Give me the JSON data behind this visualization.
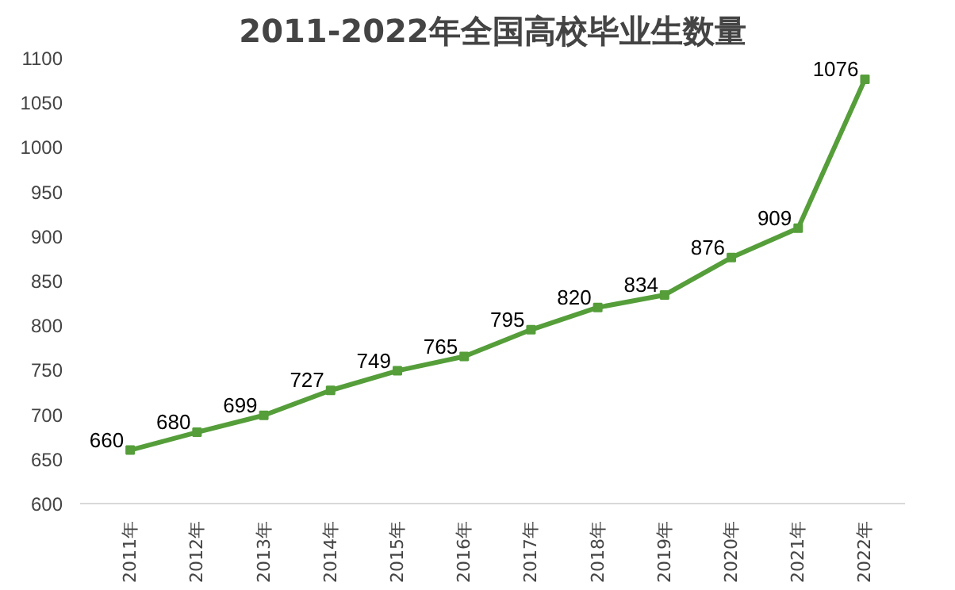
{
  "chart_data": {
    "type": "line",
    "title": "2011-2022年全国高校毕业生数量",
    "categories": [
      "2011年",
      "2012年",
      "2013年",
      "2014年",
      "2015年",
      "2016年",
      "2017年",
      "2018年",
      "2019年",
      "2020年",
      "2021年",
      "2022年"
    ],
    "series": [
      {
        "color": "#559e3a",
        "values": [
          660,
          680,
          699,
          727,
          749,
          765,
          795,
          820,
          834,
          876,
          909,
          1076
        ]
      }
    ],
    "ylim": [
      600,
      1100
    ],
    "yticks": [
      600,
      650,
      700,
      750,
      800,
      850,
      900,
      950,
      1000,
      1050,
      1100
    ],
    "data_labels": true,
    "marker": "square",
    "line_style": "solid",
    "grid": false
  }
}
